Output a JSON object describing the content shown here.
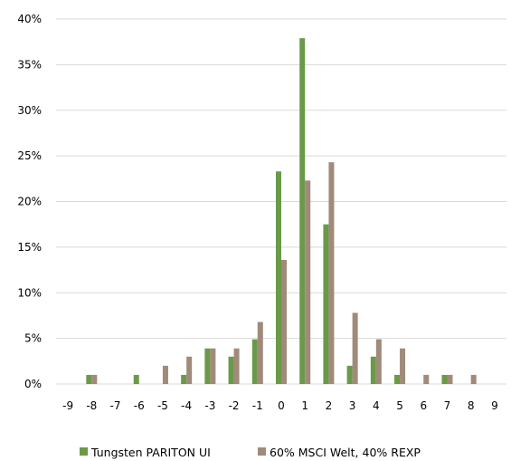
{
  "chart_data": {
    "type": "bar",
    "title": "",
    "xlabel": "",
    "ylabel": "",
    "categories": [
      "-9",
      "-8",
      "-7",
      "-6",
      "-5",
      "-4",
      "-3",
      "-2",
      "-1",
      "0",
      "1",
      "2",
      "3",
      "4",
      "5",
      "6",
      "7",
      "8",
      "9"
    ],
    "ylim": [
      0,
      40
    ],
    "y_ticks": [
      "0%",
      "5%",
      "10%",
      "15%",
      "20%",
      "25%",
      "30%",
      "35%",
      "40%"
    ],
    "y_tick_values": [
      0,
      5,
      10,
      15,
      20,
      25,
      30,
      35,
      40
    ],
    "grid": true,
    "legend_position": "bottom",
    "series": [
      {
        "name": "Tungsten PARITON UI",
        "color": "#6a9a48",
        "values": [
          0,
          1,
          0,
          1,
          0,
          1,
          3.9,
          3,
          4.9,
          23.3,
          37.9,
          17.5,
          2,
          3,
          1,
          0,
          1,
          0,
          0
        ]
      },
      {
        "name": "60% MSCI Welt, 40% REXP",
        "color": "#a08a7a",
        "values": [
          0,
          1,
          0,
          0,
          2,
          3,
          3.9,
          3.9,
          6.8,
          13.6,
          22.3,
          24.3,
          7.8,
          4.9,
          3.9,
          1,
          1,
          1,
          0
        ]
      }
    ]
  }
}
